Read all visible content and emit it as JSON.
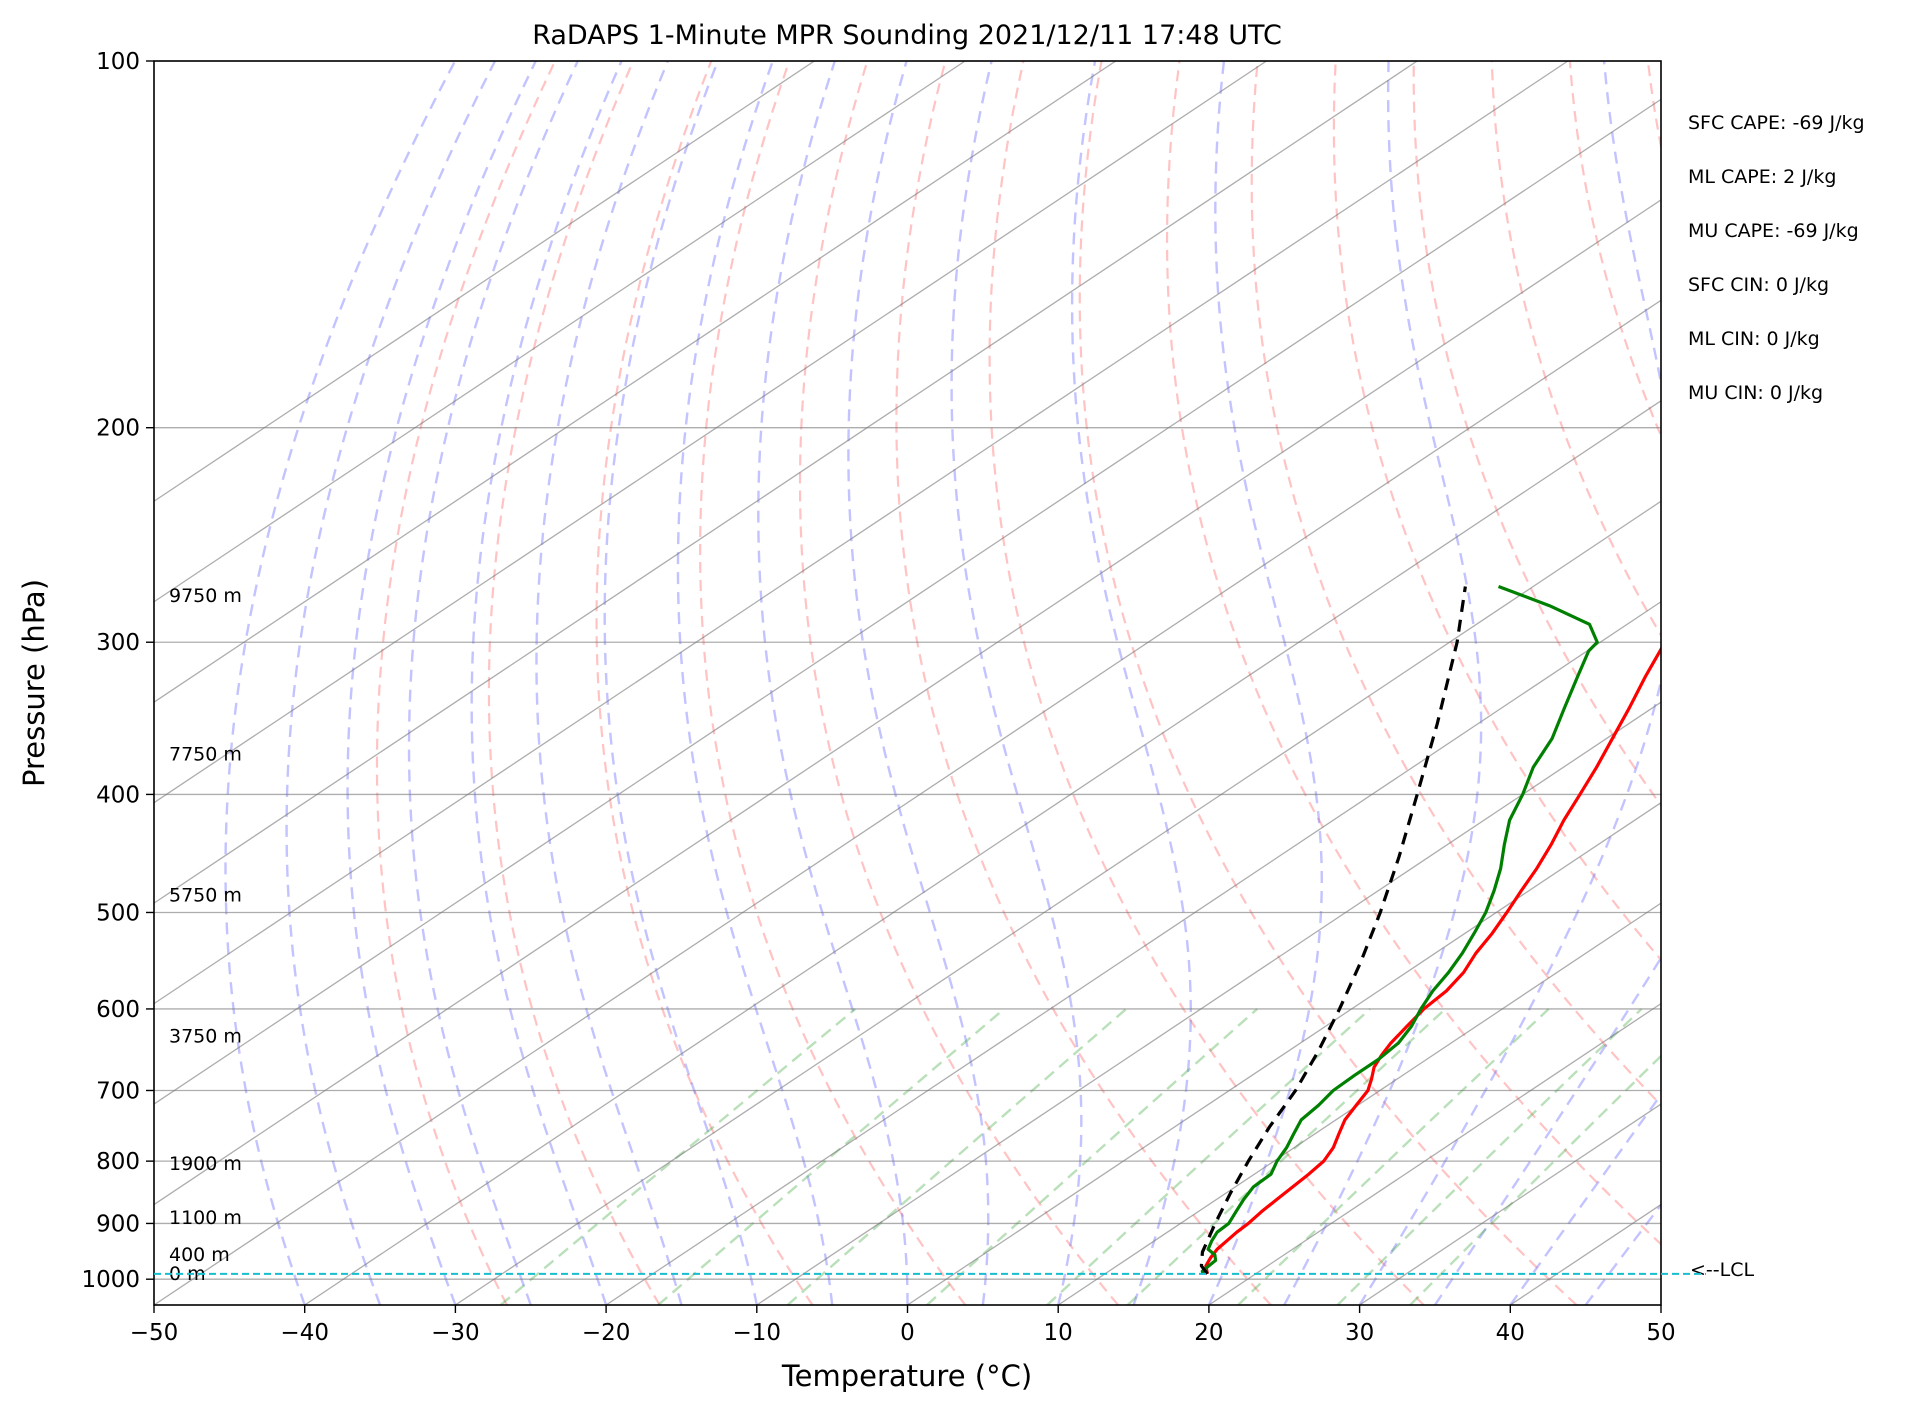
{
  "chart_data": {
    "type": "line",
    "title": "RaDAPS 1-Minute MPR Sounding 2021/12/11 17:48 UTC",
    "xlabel": "Temperature (°C)",
    "ylabel": "Pressure (hPa)",
    "xlim": [
      -50,
      50
    ],
    "ylim": [
      1050,
      100
    ],
    "y_scale": "log",
    "skew": "skew-T log-P",
    "x_ticks": [
      -50,
      -40,
      -30,
      -20,
      -10,
      0,
      10,
      20,
      30,
      40,
      50
    ],
    "x_tick_labels": [
      "−50",
      "−40",
      "−30",
      "−20",
      "−10",
      "0",
      "10",
      "20",
      "30",
      "40",
      "50"
    ],
    "y_ticks": [
      100,
      200,
      300,
      400,
      500,
      600,
      700,
      800,
      900,
      1000
    ],
    "y_tick_labels": [
      "100",
      "200",
      "300",
      "400",
      "500",
      "600",
      "700",
      "800",
      "900",
      "1000"
    ],
    "grid": true,
    "series": [
      {
        "role": "temperature",
        "color": "#ff0000",
        "points": [
          [
            990,
            16.8
          ],
          [
            975,
            15.9
          ],
          [
            960,
            15.4
          ],
          [
            945,
            15.0
          ],
          [
            930,
            14.8
          ],
          [
            915,
            14.6
          ],
          [
            900,
            14.5
          ],
          [
            880,
            14.2
          ],
          [
            860,
            14.0
          ],
          [
            840,
            13.8
          ],
          [
            820,
            13.6
          ],
          [
            800,
            13.3
          ],
          [
            780,
            12.6
          ],
          [
            760,
            11.6
          ],
          [
            740,
            10.6
          ],
          [
            720,
            9.9
          ],
          [
            700,
            9.2
          ],
          [
            685,
            8.3
          ],
          [
            670,
            7.3
          ],
          [
            655,
            6.6
          ],
          [
            640,
            6.0
          ],
          [
            620,
            5.4
          ],
          [
            600,
            4.8
          ],
          [
            580,
            4.5
          ],
          [
            560,
            3.8
          ],
          [
            540,
            2.7
          ],
          [
            520,
            1.8
          ],
          [
            500,
            0.7
          ],
          [
            480,
            -0.5
          ],
          [
            460,
            -1.7
          ],
          [
            440,
            -3.1
          ],
          [
            420,
            -4.7
          ],
          [
            400,
            -6.2
          ],
          [
            380,
            -7.8
          ],
          [
            360,
            -9.6
          ],
          [
            340,
            -11.5
          ],
          [
            320,
            -13.6
          ],
          [
            300,
            -15.7
          ],
          [
            285,
            -17.3
          ],
          [
            270,
            -19.0
          ]
        ]
      },
      {
        "role": "dewpoint",
        "color": "#008000",
        "points": [
          [
            990,
            16.5
          ],
          [
            985,
            16.2
          ],
          [
            975,
            16.1
          ],
          [
            965,
            16.0
          ],
          [
            955,
            15.4
          ],
          [
            945,
            14.4
          ],
          [
            930,
            13.8
          ],
          [
            915,
            13.3
          ],
          [
            900,
            13.2
          ],
          [
            880,
            12.5
          ],
          [
            860,
            11.8
          ],
          [
            840,
            11.2
          ],
          [
            820,
            11.1
          ],
          [
            800,
            10.2
          ],
          [
            780,
            9.5
          ],
          [
            760,
            8.6
          ],
          [
            740,
            7.7
          ],
          [
            720,
            7.4
          ],
          [
            700,
            6.9
          ],
          [
            680,
            6.8
          ],
          [
            660,
            6.8
          ],
          [
            640,
            6.5
          ],
          [
            620,
            5.7
          ],
          [
            600,
            4.6
          ],
          [
            580,
            3.6
          ],
          [
            560,
            2.8
          ],
          [
            540,
            1.8
          ],
          [
            520,
            0.6
          ],
          [
            500,
            -0.7
          ],
          [
            480,
            -2.3
          ],
          [
            460,
            -4.1
          ],
          [
            440,
            -6.2
          ],
          [
            420,
            -8.3
          ],
          [
            400,
            -10.0
          ],
          [
            380,
            -12.0
          ],
          [
            360,
            -13.6
          ],
          [
            340,
            -15.8
          ],
          [
            320,
            -18.1
          ],
          [
            305,
            -19.9
          ],
          [
            300,
            -20.2
          ],
          [
            290,
            -22.5
          ],
          [
            280,
            -27.0
          ],
          [
            270,
            -32.3
          ]
        ]
      },
      {
        "role": "parcel",
        "color": "#000000",
        "points": [
          [
            990,
            16.8
          ],
          [
            975,
            15.6
          ],
          [
            950,
            14.3
          ],
          [
            900,
            12.3
          ],
          [
            850,
            10.3
          ],
          [
            800,
            8.3
          ],
          [
            750,
            6.3
          ],
          [
            700,
            4.4
          ],
          [
            650,
            2.0
          ],
          [
            600,
            -0.8
          ],
          [
            550,
            -4.0
          ],
          [
            500,
            -7.7
          ],
          [
            450,
            -12.0
          ],
          [
            400,
            -17.0
          ],
          [
            350,
            -22.7
          ],
          [
            300,
            -29.5
          ],
          [
            270,
            -34.5
          ]
        ]
      }
    ],
    "height_labels": [
      {
        "p": 990,
        "text": "0 m"
      },
      {
        "p": 955,
        "text": "400 m"
      },
      {
        "p": 891,
        "text": "1100 m"
      },
      {
        "p": 804,
        "text": "1900 m"
      },
      {
        "p": 632,
        "text": "3750 m"
      },
      {
        "p": 484,
        "text": "5750 m"
      },
      {
        "p": 371,
        "text": "7750 m"
      },
      {
        "p": 275,
        "text": "9750 m"
      }
    ],
    "lcl": {
      "p": 990,
      "label": "<--LCL"
    },
    "indices": [
      "SFC CAPE: -69 J/kg",
      "ML CAPE: 2 J/kg",
      "MU CAPE: -69 J/kg",
      "SFC CIN: 0 J/kg",
      "ML CIN: 0 J/kg",
      "MU CIN: 0 J/kg"
    ]
  }
}
